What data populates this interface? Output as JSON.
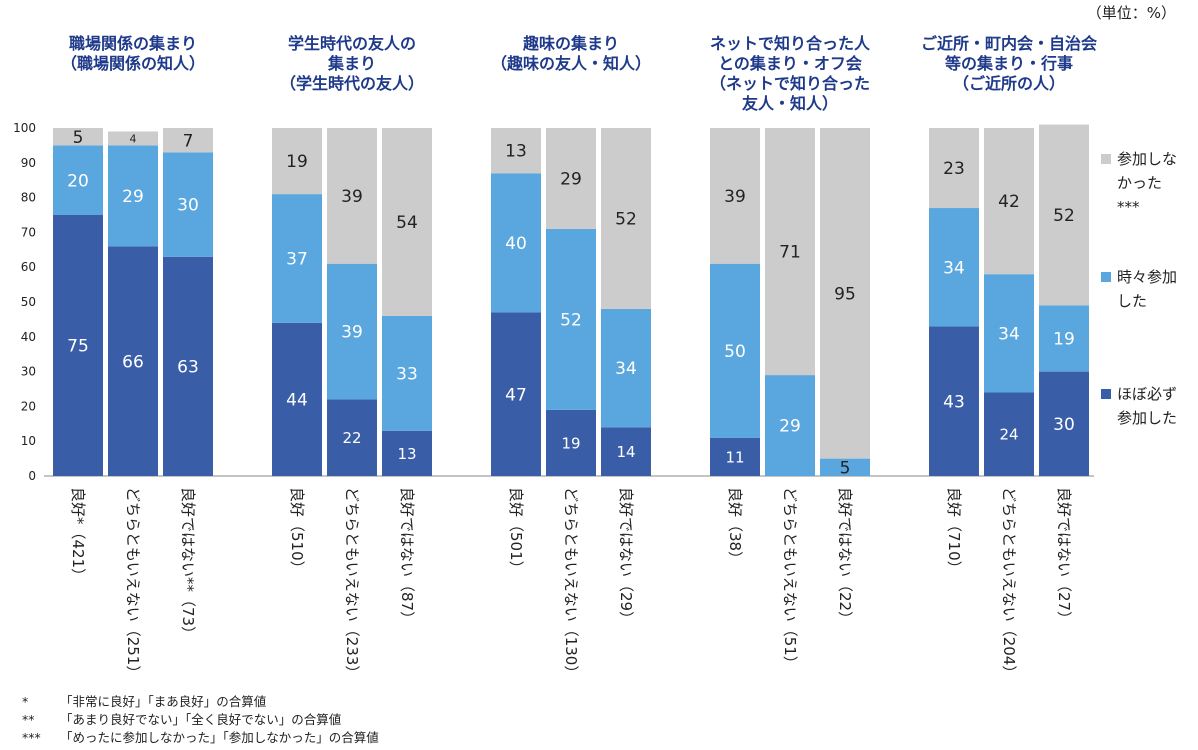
{
  "unit_label": "（単位：%）",
  "colors": {
    "always": "#3a5da8",
    "sometimes": "#5aa6de",
    "never": "#cccccc",
    "axis": "#888888"
  },
  "footnotes": [
    {
      "mark": "*",
      "text": "「非常に良好」「まあ良好」の合算値"
    },
    {
      "mark": "**",
      "text": "「あまり良好でない」「全く良好でない」の合算値"
    },
    {
      "mark": "***",
      "text": "「めったに参加しなかった」「参加しなかった」の合算値"
    }
  ],
  "chart_data": {
    "type": "bar",
    "stacked": true,
    "ylim": [
      0,
      100
    ],
    "yticks": [
      0,
      10,
      20,
      30,
      40,
      50,
      60,
      70,
      80,
      90,
      100
    ],
    "grid": false,
    "legend_position": "right",
    "legend": [
      {
        "key": "never",
        "label_lines": [
          "参加しな",
          "かった",
          "***"
        ]
      },
      {
        "key": "sometimes",
        "label_lines": [
          "時々参加",
          "した"
        ]
      },
      {
        "key": "always",
        "label_lines": [
          "ほぼ必ず",
          "参加した"
        ]
      }
    ],
    "groups": [
      {
        "title_lines": [
          "職場関係の集まり",
          "（職場関係の知人）"
        ],
        "bars": [
          {
            "label": "良好*（421）",
            "always": 75,
            "sometimes": 20,
            "never": 5
          },
          {
            "label": "どちらともいえない（251）",
            "always": 66,
            "sometimes": 29,
            "never": 4
          },
          {
            "label": "良好ではない**（73）",
            "always": 63,
            "sometimes": 30,
            "never": 7
          }
        ]
      },
      {
        "title_lines": [
          "学生時代の友人の",
          "集まり",
          "（学生時代の友人）"
        ],
        "bars": [
          {
            "label": "良好（510）",
            "always": 44,
            "sometimes": 37,
            "never": 19
          },
          {
            "label": "どちらともいえない（233）",
            "always": 22,
            "sometimes": 39,
            "never": 39
          },
          {
            "label": "良好ではない（87）",
            "always": 13,
            "sometimes": 33,
            "never": 54
          }
        ]
      },
      {
        "title_lines": [
          "趣味の集まり",
          "（趣味の友人・知人）"
        ],
        "bars": [
          {
            "label": "良好（501）",
            "always": 47,
            "sometimes": 40,
            "never": 13
          },
          {
            "label": "どちらともいえない（130）",
            "always": 19,
            "sometimes": 52,
            "never": 29
          },
          {
            "label": "良好ではない（29）",
            "always": 14,
            "sometimes": 34,
            "never": 52
          }
        ]
      },
      {
        "title_lines": [
          "ネットで知り合った人",
          "との集まり・オフ会",
          "（ネットで知り合った",
          "友人・知人）"
        ],
        "bars": [
          {
            "label": "良好（38）",
            "always": 11,
            "sometimes": 50,
            "never": 39
          },
          {
            "label": "どちらともいえない（51）",
            "always": 0,
            "sometimes": 29,
            "never": 71
          },
          {
            "label": "良好ではない（22）",
            "always": 0,
            "sometimes": 5,
            "never": 95
          }
        ]
      },
      {
        "title_lines": [
          "ご近所・町内会・自治会",
          "等の集まり・行事",
          "（ご近所の人）"
        ],
        "bars": [
          {
            "label": "良好（710）",
            "always": 43,
            "sometimes": 34,
            "never": 23
          },
          {
            "label": "どちらともいえない（204）",
            "always": 24,
            "sometimes": 34,
            "never": 42
          },
          {
            "label": "良好ではない（27）",
            "always": 30,
            "sometimes": 19,
            "never": 52
          }
        ]
      }
    ]
  }
}
